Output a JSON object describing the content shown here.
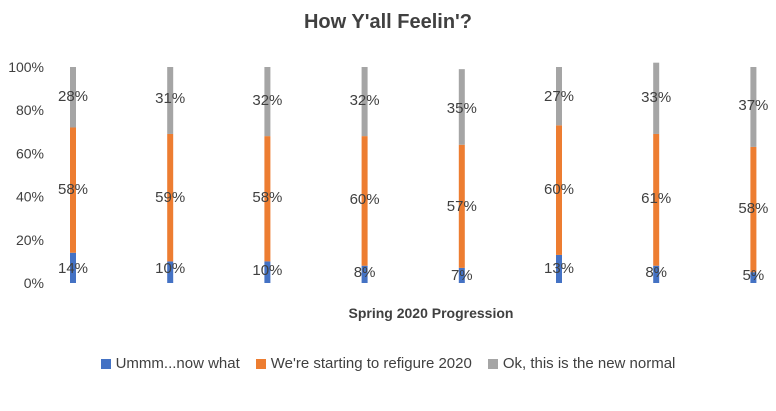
{
  "chart_data": {
    "type": "bar",
    "stacked": true,
    "title": "How Y'all Feelin'?",
    "xlabel": "Spring 2020 Progression",
    "ylabel": "",
    "ylim": [
      0,
      100
    ],
    "yticks": [
      "0%",
      "20%",
      "40%",
      "60%",
      "80%",
      "100%"
    ],
    "categories": [
      "",
      "",
      "",
      "",
      "",
      "",
      "",
      ""
    ],
    "series": [
      {
        "name": "Ummm...now what",
        "color": "#4472C4",
        "values": [
          14,
          10,
          10,
          8,
          7,
          13,
          8,
          5
        ],
        "labels": [
          "14%",
          "10%",
          "10%",
          "8%",
          "7%",
          "13%",
          "8%",
          "5%"
        ]
      },
      {
        "name": "We're starting to refigure 2020",
        "color": "#ED7D31",
        "values": [
          58,
          59,
          58,
          60,
          57,
          60,
          61,
          58
        ],
        "labels": [
          "58%",
          "59%",
          "58%",
          "60%",
          "57%",
          "60%",
          "61%",
          "58%"
        ]
      },
      {
        "name": "Ok, this is the new normal",
        "color": "#A5A5A5",
        "values": [
          28,
          31,
          32,
          32,
          35,
          27,
          33,
          37
        ],
        "labels": [
          "28%",
          "31%",
          "32%",
          "32%",
          "35%",
          "27%",
          "33%",
          "37%"
        ]
      }
    ],
    "legend_position": "bottom",
    "grid": false
  }
}
